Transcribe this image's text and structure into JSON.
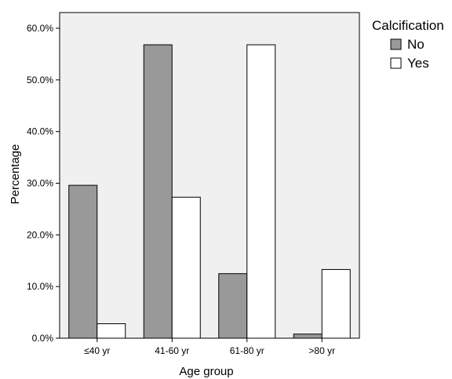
{
  "chart_data": {
    "type": "bar",
    "xlabel": "Age group",
    "ylabel": "Percentage",
    "ylim": [
      0,
      60
    ],
    "ytick_values": [
      0,
      10,
      20,
      30,
      40,
      50,
      60
    ],
    "ytick_labels": [
      "0.0%",
      "10.0%",
      "20.0%",
      "30.0%",
      "40.0%",
      "50.0%",
      "60.0%"
    ],
    "categories": [
      "≤40 yr",
      "41-60 yr",
      "61-80 yr",
      ">80 yr"
    ],
    "legend_title": "Calcification",
    "legend_position": "top-right",
    "grid": false,
    "series": [
      {
        "name": "No",
        "color": "#999999",
        "values": [
          29.6,
          56.8,
          12.5,
          0.8
        ]
      },
      {
        "name": "Yes",
        "color": "#ffffff",
        "values": [
          2.8,
          27.3,
          56.8,
          13.3
        ]
      }
    ]
  }
}
